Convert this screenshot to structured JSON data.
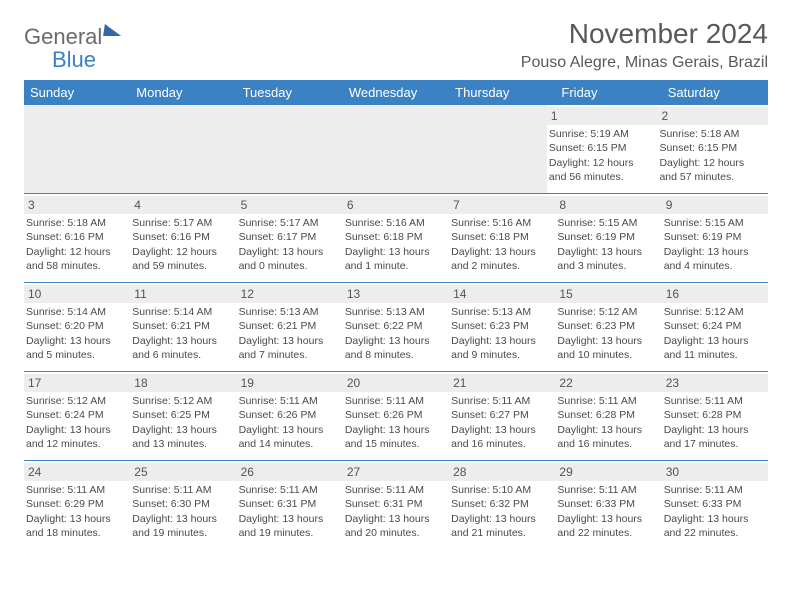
{
  "logo": {
    "text1": "General",
    "text2": "Blue"
  },
  "title": "November 2024",
  "location": "Pouso Alegre, Minas Gerais, Brazil",
  "colors": {
    "header_bg": "#3b82c4",
    "header_text": "#ffffff",
    "daynum_bg": "#ededed",
    "border": "#3b82c4",
    "text": "#4a4a4a",
    "title_text": "#595959"
  },
  "day_labels": [
    "Sunday",
    "Monday",
    "Tuesday",
    "Wednesday",
    "Thursday",
    "Friday",
    "Saturday"
  ],
  "weeks": [
    [
      null,
      null,
      null,
      null,
      null,
      {
        "n": "1",
        "sr": "5:19 AM",
        "ss": "6:15 PM",
        "dl": "12 hours and 56 minutes."
      },
      {
        "n": "2",
        "sr": "5:18 AM",
        "ss": "6:15 PM",
        "dl": "12 hours and 57 minutes."
      }
    ],
    [
      {
        "n": "3",
        "sr": "5:18 AM",
        "ss": "6:16 PM",
        "dl": "12 hours and 58 minutes."
      },
      {
        "n": "4",
        "sr": "5:17 AM",
        "ss": "6:16 PM",
        "dl": "12 hours and 59 minutes."
      },
      {
        "n": "5",
        "sr": "5:17 AM",
        "ss": "6:17 PM",
        "dl": "13 hours and 0 minutes."
      },
      {
        "n": "6",
        "sr": "5:16 AM",
        "ss": "6:18 PM",
        "dl": "13 hours and 1 minute."
      },
      {
        "n": "7",
        "sr": "5:16 AM",
        "ss": "6:18 PM",
        "dl": "13 hours and 2 minutes."
      },
      {
        "n": "8",
        "sr": "5:15 AM",
        "ss": "6:19 PM",
        "dl": "13 hours and 3 minutes."
      },
      {
        "n": "9",
        "sr": "5:15 AM",
        "ss": "6:19 PM",
        "dl": "13 hours and 4 minutes."
      }
    ],
    [
      {
        "n": "10",
        "sr": "5:14 AM",
        "ss": "6:20 PM",
        "dl": "13 hours and 5 minutes."
      },
      {
        "n": "11",
        "sr": "5:14 AM",
        "ss": "6:21 PM",
        "dl": "13 hours and 6 minutes."
      },
      {
        "n": "12",
        "sr": "5:13 AM",
        "ss": "6:21 PM",
        "dl": "13 hours and 7 minutes."
      },
      {
        "n": "13",
        "sr": "5:13 AM",
        "ss": "6:22 PM",
        "dl": "13 hours and 8 minutes."
      },
      {
        "n": "14",
        "sr": "5:13 AM",
        "ss": "6:23 PM",
        "dl": "13 hours and 9 minutes."
      },
      {
        "n": "15",
        "sr": "5:12 AM",
        "ss": "6:23 PM",
        "dl": "13 hours and 10 minutes."
      },
      {
        "n": "16",
        "sr": "5:12 AM",
        "ss": "6:24 PM",
        "dl": "13 hours and 11 minutes."
      }
    ],
    [
      {
        "n": "17",
        "sr": "5:12 AM",
        "ss": "6:24 PM",
        "dl": "13 hours and 12 minutes."
      },
      {
        "n": "18",
        "sr": "5:12 AM",
        "ss": "6:25 PM",
        "dl": "13 hours and 13 minutes."
      },
      {
        "n": "19",
        "sr": "5:11 AM",
        "ss": "6:26 PM",
        "dl": "13 hours and 14 minutes."
      },
      {
        "n": "20",
        "sr": "5:11 AM",
        "ss": "6:26 PM",
        "dl": "13 hours and 15 minutes."
      },
      {
        "n": "21",
        "sr": "5:11 AM",
        "ss": "6:27 PM",
        "dl": "13 hours and 16 minutes."
      },
      {
        "n": "22",
        "sr": "5:11 AM",
        "ss": "6:28 PM",
        "dl": "13 hours and 16 minutes."
      },
      {
        "n": "23",
        "sr": "5:11 AM",
        "ss": "6:28 PM",
        "dl": "13 hours and 17 minutes."
      }
    ],
    [
      {
        "n": "24",
        "sr": "5:11 AM",
        "ss": "6:29 PM",
        "dl": "13 hours and 18 minutes."
      },
      {
        "n": "25",
        "sr": "5:11 AM",
        "ss": "6:30 PM",
        "dl": "13 hours and 19 minutes."
      },
      {
        "n": "26",
        "sr": "5:11 AM",
        "ss": "6:31 PM",
        "dl": "13 hours and 19 minutes."
      },
      {
        "n": "27",
        "sr": "5:11 AM",
        "ss": "6:31 PM",
        "dl": "13 hours and 20 minutes."
      },
      {
        "n": "28",
        "sr": "5:10 AM",
        "ss": "6:32 PM",
        "dl": "13 hours and 21 minutes."
      },
      {
        "n": "29",
        "sr": "5:11 AM",
        "ss": "6:33 PM",
        "dl": "13 hours and 22 minutes."
      },
      {
        "n": "30",
        "sr": "5:11 AM",
        "ss": "6:33 PM",
        "dl": "13 hours and 22 minutes."
      }
    ]
  ],
  "labels": {
    "sunrise": "Sunrise:",
    "sunset": "Sunset:",
    "daylight": "Daylight:"
  }
}
